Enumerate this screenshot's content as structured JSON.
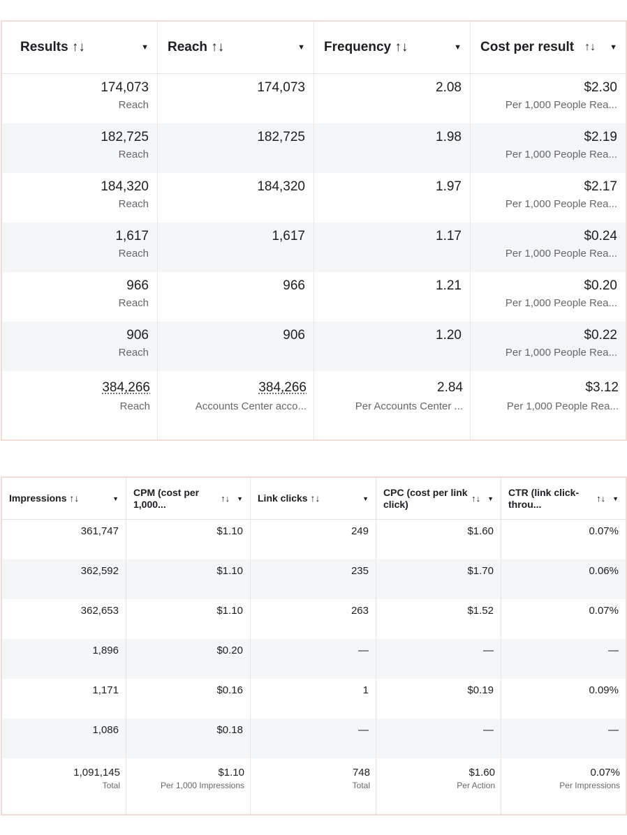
{
  "table1": {
    "columns": [
      {
        "label": "Results ↑↓",
        "sort": "",
        "rows": [
          {
            "value": "174,073",
            "sub": "Reach"
          },
          {
            "value": "182,725",
            "sub": "Reach"
          },
          {
            "value": "184,320",
            "sub": "Reach"
          },
          {
            "value": "1,617",
            "sub": "Reach"
          },
          {
            "value": "966",
            "sub": "Reach"
          },
          {
            "value": "906",
            "sub": "Reach"
          }
        ],
        "total": {
          "value": "384,266",
          "sub": "Reach"
        }
      },
      {
        "label": "Reach ↑↓",
        "sort": "",
        "rows": [
          {
            "value": "174,073",
            "sub": ""
          },
          {
            "value": "182,725",
            "sub": ""
          },
          {
            "value": "184,320",
            "sub": ""
          },
          {
            "value": "1,617",
            "sub": ""
          },
          {
            "value": "966",
            "sub": ""
          },
          {
            "value": "906",
            "sub": ""
          }
        ],
        "total": {
          "value": "384,266",
          "sub": "Accounts Center acco..."
        }
      },
      {
        "label": "Frequency ↑↓",
        "sort": "",
        "rows": [
          {
            "value": "2.08",
            "sub": ""
          },
          {
            "value": "1.98",
            "sub": ""
          },
          {
            "value": "1.97",
            "sub": ""
          },
          {
            "value": "1.17",
            "sub": ""
          },
          {
            "value": "1.21",
            "sub": ""
          },
          {
            "value": "1.20",
            "sub": ""
          }
        ],
        "total": {
          "value": "2.84",
          "sub": "Per Accounts Center ..."
        }
      },
      {
        "label": "Cost per result",
        "sort": "↑↓",
        "rows": [
          {
            "value": "$2.30",
            "sub": "Per 1,000 People Rea..."
          },
          {
            "value": "$2.19",
            "sub": "Per 1,000 People Rea..."
          },
          {
            "value": "$2.17",
            "sub": "Per 1,000 People Rea..."
          },
          {
            "value": "$0.24",
            "sub": "Per 1,000 People Rea..."
          },
          {
            "value": "$0.20",
            "sub": "Per 1,000 People Rea..."
          },
          {
            "value": "$0.22",
            "sub": "Per 1,000 People Rea..."
          }
        ],
        "total": {
          "value": "$3.12",
          "sub": "Per 1,000 People Rea..."
        }
      }
    ]
  },
  "table2": {
    "columns": [
      {
        "label": "Impressions ↑↓",
        "sort": "",
        "rows": [
          "361,747",
          "362,592",
          "362,653",
          "1,896",
          "1,171",
          "1,086"
        ],
        "total": {
          "value": "1,091,145",
          "sub": "Total"
        }
      },
      {
        "label": "CPM (cost per 1,000...",
        "sort": "↑↓",
        "rows": [
          "$1.10",
          "$1.10",
          "$1.10",
          "$0.20",
          "$0.16",
          "$0.18"
        ],
        "total": {
          "value": "$1.10",
          "sub": "Per 1,000 Impressions"
        }
      },
      {
        "label": "Link clicks ↑↓",
        "sort": "",
        "rows": [
          "249",
          "235",
          "263",
          "—",
          "1",
          "—"
        ],
        "total": {
          "value": "748",
          "sub": "Total"
        }
      },
      {
        "label": "CPC (cost per link click)",
        "sort": "↑↓",
        "rows": [
          "$1.60",
          "$1.70",
          "$1.52",
          "—",
          "$0.19",
          "—"
        ],
        "total": {
          "value": "$1.60",
          "sub": "Per Action"
        }
      },
      {
        "label": "CTR (link click-throu...",
        "sort": "↑↓",
        "rows": [
          "0.07%",
          "0.06%",
          "0.07%",
          "—",
          "0.09%",
          "—"
        ],
        "total": {
          "value": "0.07%",
          "sub": "Per Impressions"
        }
      }
    ]
  },
  "icons": {
    "caret": "caret-down-icon",
    "sort": "sort-arrows-icon"
  }
}
